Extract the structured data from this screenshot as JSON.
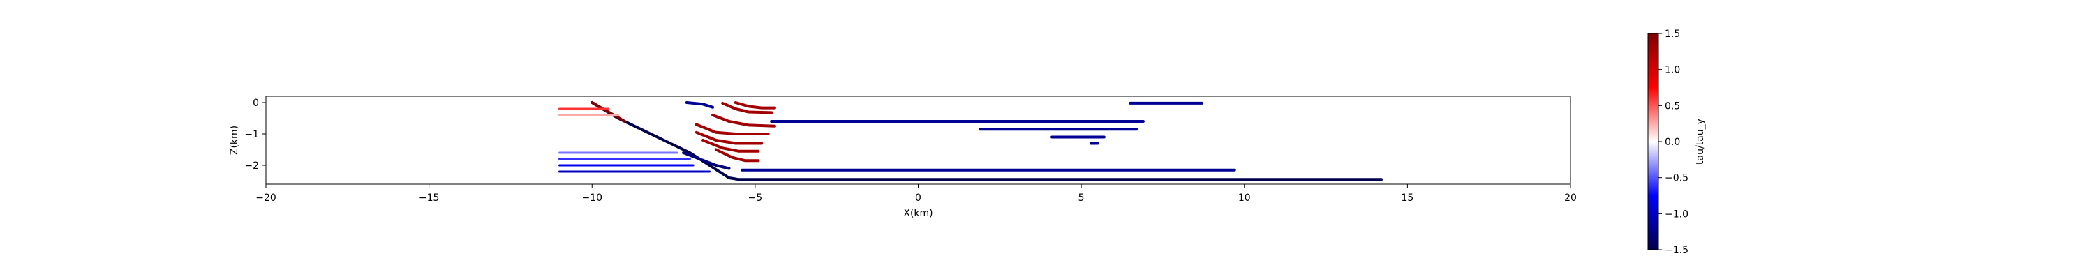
{
  "chart_data": {
    "type": "line",
    "xlabel": "X(km)",
    "ylabel": "Z(km)",
    "xlim": [
      -20,
      20
    ],
    "ylim": [
      -2.6,
      0.2
    ],
    "xticks": [
      -20,
      -15,
      -10,
      -5,
      0,
      5,
      10,
      15,
      20
    ],
    "yticks": [
      0,
      -1,
      -2
    ],
    "grid": false,
    "colorbar": {
      "label": "tau/tau_y",
      "min": -1.5,
      "max": 1.5,
      "ticks": [
        1.5,
        1.0,
        0.5,
        0.0,
        -0.5,
        -1.0,
        -1.5
      ],
      "tick_labels": [
        "1.5",
        "1.0",
        "0.5",
        "0.0",
        "−0.5",
        "−1.0",
        "−1.5"
      ],
      "colormap": "seismic"
    },
    "segments": [
      {
        "points": [
          [
            -10.0,
            0.0
          ],
          [
            -9.2,
            -0.5
          ],
          [
            -8.0,
            -1.1
          ],
          [
            -7.0,
            -1.6
          ],
          [
            -6.4,
            -2.0
          ],
          [
            -5.8,
            -2.4
          ],
          [
            -5.5,
            -2.45
          ],
          [
            14.2,
            -2.45
          ]
        ],
        "value": -1.5,
        "width": 4
      },
      {
        "points": [
          [
            -10.0,
            0.0
          ],
          [
            -9.0,
            -0.6
          ]
        ],
        "value": 1.5,
        "width": 4
      },
      {
        "points": [
          [
            -7.1,
            0.0
          ],
          [
            -6.6,
            -0.05
          ],
          [
            -6.3,
            -0.15
          ]
        ],
        "value": -1.2,
        "width": 4
      },
      {
        "points": [
          [
            -6.0,
            -0.02
          ],
          [
            -5.6,
            -0.2
          ],
          [
            -5.2,
            -0.3
          ],
          [
            -4.5,
            -0.32
          ]
        ],
        "value": 1.3,
        "width": 4
      },
      {
        "points": [
          [
            -5.6,
            0.0
          ],
          [
            -5.2,
            -0.12
          ],
          [
            -4.8,
            -0.17
          ],
          [
            -4.4,
            -0.17
          ]
        ],
        "value": 1.3,
        "width": 4
      },
      {
        "points": [
          [
            -6.3,
            -0.4
          ],
          [
            -5.8,
            -0.6
          ],
          [
            -5.2,
            -0.72
          ],
          [
            -4.4,
            -0.75
          ]
        ],
        "value": 1.3,
        "width": 4
      },
      {
        "points": [
          [
            -6.8,
            -0.7
          ],
          [
            -6.2,
            -0.95
          ],
          [
            -5.6,
            -1.0
          ],
          [
            -4.6,
            -1.0
          ]
        ],
        "value": 1.3,
        "width": 4
      },
      {
        "points": [
          [
            -6.8,
            -0.95
          ],
          [
            -6.2,
            -1.2
          ],
          [
            -5.6,
            -1.3
          ],
          [
            -4.8,
            -1.3
          ]
        ],
        "value": 1.3,
        "width": 4
      },
      {
        "points": [
          [
            -6.6,
            -1.2
          ],
          [
            -6.0,
            -1.45
          ],
          [
            -5.5,
            -1.55
          ],
          [
            -4.9,
            -1.55
          ]
        ],
        "value": 1.3,
        "width": 4
      },
      {
        "points": [
          [
            -6.2,
            -1.5
          ],
          [
            -5.7,
            -1.75
          ],
          [
            -5.3,
            -1.85
          ],
          [
            -4.9,
            -1.85
          ]
        ],
        "value": 1.3,
        "width": 4
      },
      {
        "points": [
          [
            -7.2,
            -1.6
          ],
          [
            -6.2,
            -2.0
          ],
          [
            -5.8,
            -2.1
          ]
        ],
        "value": -1.3,
        "width": 4
      },
      {
        "points": [
          [
            -4.5,
            -0.6
          ],
          [
            6.9,
            -0.6
          ]
        ],
        "value": -1.2,
        "width": 4
      },
      {
        "points": [
          [
            6.5,
            -0.02
          ],
          [
            8.7,
            -0.02
          ]
        ],
        "value": -1.2,
        "width": 4
      },
      {
        "points": [
          [
            1.9,
            -0.85
          ],
          [
            6.7,
            -0.85
          ]
        ],
        "value": -1.2,
        "width": 4
      },
      {
        "points": [
          [
            4.1,
            -1.1
          ],
          [
            5.7,
            -1.1
          ]
        ],
        "value": -1.2,
        "width": 4
      },
      {
        "points": [
          [
            5.3,
            -1.3
          ],
          [
            5.5,
            -1.3
          ]
        ],
        "value": -1.2,
        "width": 4
      },
      {
        "points": [
          [
            -5.4,
            -2.15
          ],
          [
            9.7,
            -2.15
          ]
        ],
        "value": -1.2,
        "width": 4
      },
      {
        "points": [
          [
            -11.0,
            -0.2
          ],
          [
            -9.5,
            -0.2
          ]
        ],
        "value": 0.6,
        "width": 3
      },
      {
        "points": [
          [
            -11.0,
            -0.4
          ],
          [
            -9.2,
            -0.4
          ]
        ],
        "value": 0.25,
        "width": 3
      },
      {
        "points": [
          [
            -11.0,
            -1.6
          ],
          [
            -7.4,
            -1.6
          ]
        ],
        "value": -0.4,
        "width": 3
      },
      {
        "points": [
          [
            -11.0,
            -1.8
          ],
          [
            -7.0,
            -1.8
          ]
        ],
        "value": -0.6,
        "width": 3
      },
      {
        "points": [
          [
            -11.0,
            -2.0
          ],
          [
            -6.9,
            -2.0
          ]
        ],
        "value": -0.8,
        "width": 3
      },
      {
        "points": [
          [
            -11.0,
            -2.2
          ],
          [
            -6.4,
            -2.2
          ]
        ],
        "value": -1.0,
        "width": 3
      }
    ]
  }
}
